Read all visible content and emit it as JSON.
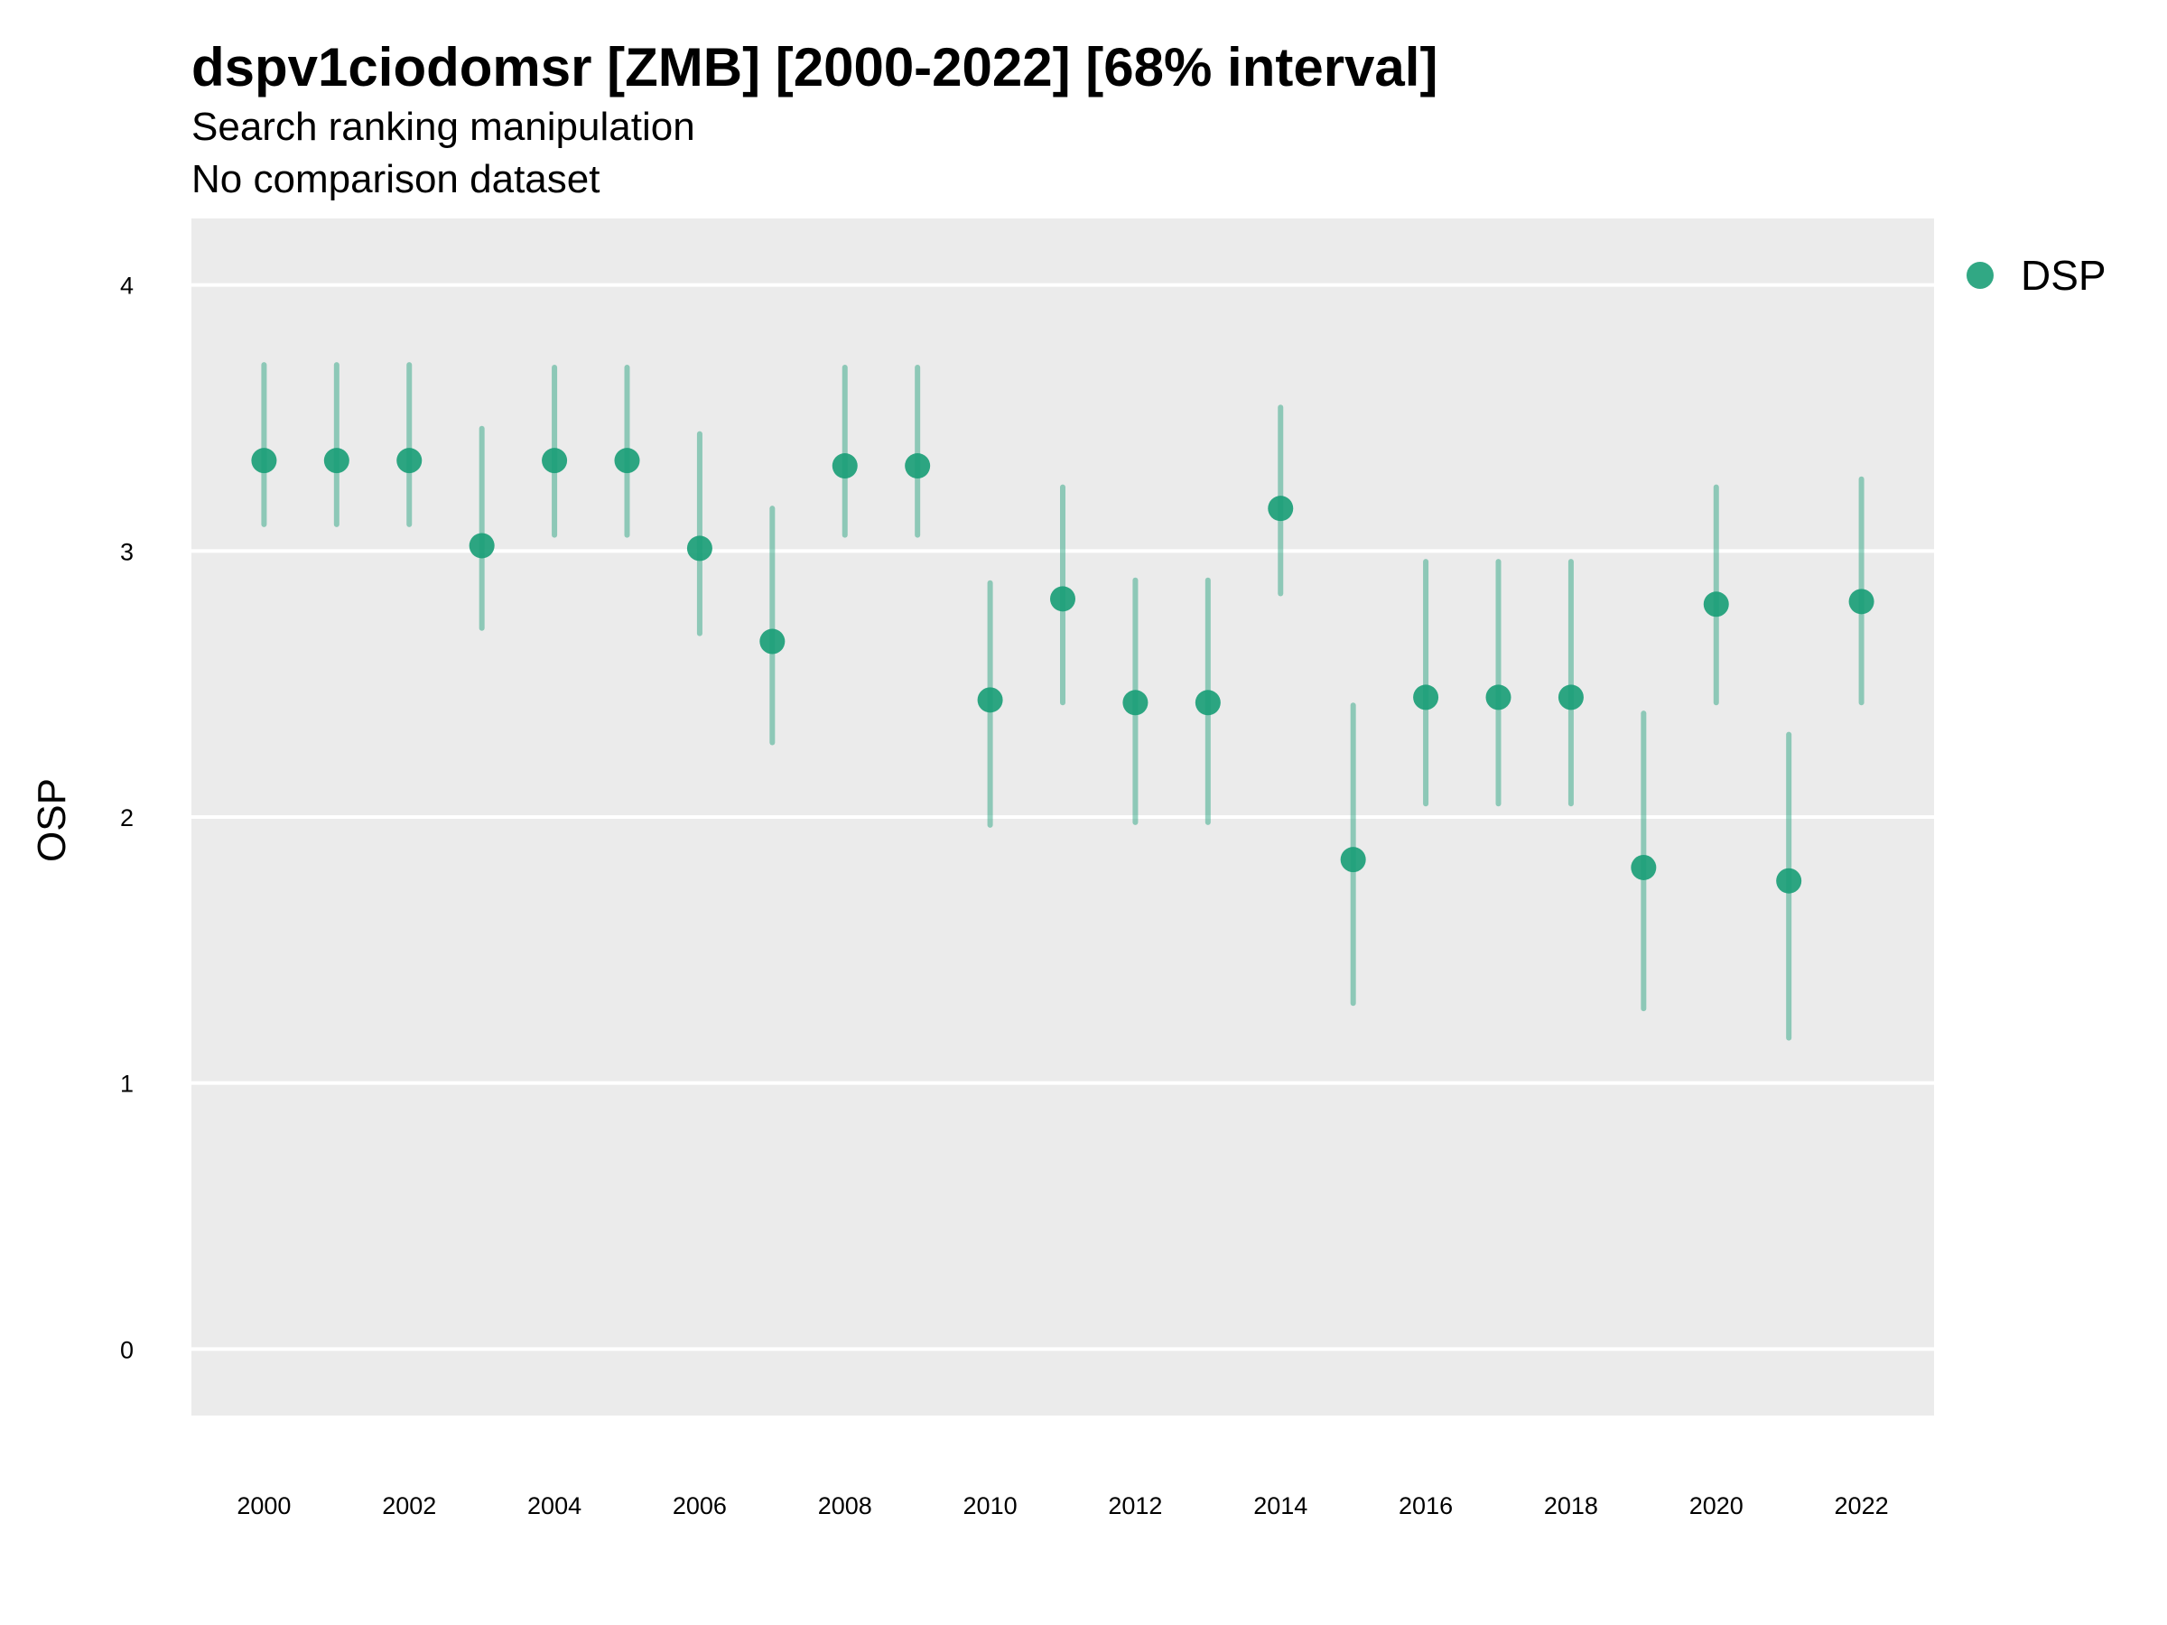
{
  "chart_data": {
    "type": "scatter",
    "title": "dspv1ciodomsr [ZMB] [2000-2022] [68% interval]",
    "subtitle": "Search ranking manipulation",
    "subtitle2": "No comparison dataset",
    "xlabel": "",
    "ylabel": "OSP",
    "xlim": [
      1999.0,
      2023.0
    ],
    "ylim": [
      -0.25,
      4.25
    ],
    "x_ticks": [
      "2000",
      "2002",
      "2004",
      "2006",
      "2008",
      "2010",
      "2012",
      "2014",
      "2016",
      "2018",
      "2020",
      "2022"
    ],
    "y_ticks": [
      "0",
      "1",
      "2",
      "3",
      "4"
    ],
    "grid": true,
    "legend_position": "right",
    "series": [
      {
        "name": "DSP",
        "color": "#1b9e77",
        "points": [
          {
            "x": 2000,
            "y": 3.34,
            "lo": 3.1,
            "hi": 3.7
          },
          {
            "x": 2001,
            "y": 3.34,
            "lo": 3.1,
            "hi": 3.7
          },
          {
            "x": 2002,
            "y": 3.34,
            "lo": 3.1,
            "hi": 3.7
          },
          {
            "x": 2003,
            "y": 3.02,
            "lo": 2.71,
            "hi": 3.46
          },
          {
            "x": 2004,
            "y": 3.34,
            "lo": 3.06,
            "hi": 3.69
          },
          {
            "x": 2005,
            "y": 3.34,
            "lo": 3.06,
            "hi": 3.69
          },
          {
            "x": 2006,
            "y": 3.01,
            "lo": 2.69,
            "hi": 3.44
          },
          {
            "x": 2007,
            "y": 2.66,
            "lo": 2.28,
            "hi": 3.16
          },
          {
            "x": 2008,
            "y": 3.32,
            "lo": 3.06,
            "hi": 3.69
          },
          {
            "x": 2009,
            "y": 3.32,
            "lo": 3.06,
            "hi": 3.69
          },
          {
            "x": 2010,
            "y": 2.44,
            "lo": 1.97,
            "hi": 2.88
          },
          {
            "x": 2011,
            "y": 2.82,
            "lo": 2.43,
            "hi": 3.24
          },
          {
            "x": 2012,
            "y": 2.43,
            "lo": 1.98,
            "hi": 2.89
          },
          {
            "x": 2013,
            "y": 2.43,
            "lo": 1.98,
            "hi": 2.89
          },
          {
            "x": 2014,
            "y": 3.16,
            "lo": 2.84,
            "hi": 3.54
          },
          {
            "x": 2015,
            "y": 1.84,
            "lo": 1.3,
            "hi": 2.42
          },
          {
            "x": 2016,
            "y": 2.45,
            "lo": 2.05,
            "hi": 2.96
          },
          {
            "x": 2017,
            "y": 2.45,
            "lo": 2.05,
            "hi": 2.96
          },
          {
            "x": 2018,
            "y": 2.45,
            "lo": 2.05,
            "hi": 2.96
          },
          {
            "x": 2019,
            "y": 1.81,
            "lo": 1.28,
            "hi": 2.39
          },
          {
            "x": 2020,
            "y": 2.8,
            "lo": 2.43,
            "hi": 3.24
          },
          {
            "x": 2021,
            "y": 1.76,
            "lo": 1.17,
            "hi": 2.31
          },
          {
            "x": 2022,
            "y": 2.81,
            "lo": 2.43,
            "hi": 3.27
          }
        ]
      }
    ]
  }
}
